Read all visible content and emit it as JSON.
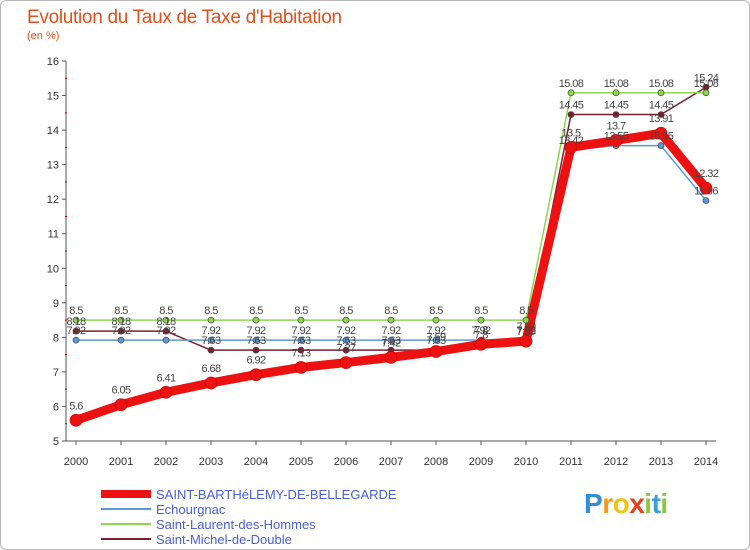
{
  "title": "Evolution du Taux de Taxe d'Habitation",
  "subtitle": "(en %)",
  "logo": {
    "letters": [
      "P",
      "r",
      "o",
      "x",
      "i",
      "t",
      "i"
    ],
    "colors": [
      "#2e8fd6",
      "#f39a1b",
      "#f1c40f",
      "#e8411f",
      "#8dc63f",
      "#3a9fd8",
      "#8dc63f"
    ]
  },
  "chart_data": {
    "type": "line",
    "title": "Evolution du Taux de Taxe d'Habitation",
    "ylabel": "(en %)",
    "xlabel": "",
    "ylim": [
      5,
      16
    ],
    "yticks": [
      5,
      6,
      7,
      8,
      9,
      10,
      11,
      12,
      13,
      14,
      15,
      16
    ],
    "x": [
      "2000",
      "2001",
      "2002",
      "2003",
      "2004",
      "2005",
      "2006",
      "2007",
      "2008",
      "2009",
      "2010",
      "2011",
      "2012",
      "2013",
      "2014"
    ],
    "grid": false,
    "legend_position": "bottom-left",
    "series": [
      {
        "name": "SAINT-BARTHéLEMY-DE-BELLEGARDE",
        "color": "#ee1111",
        "width": 9,
        "values": [
          5.6,
          6.05,
          6.41,
          6.68,
          6.92,
          7.13,
          7.27,
          7.42,
          7.59,
          7.8,
          7.89,
          13.5,
          13.7,
          13.91,
          12.32
        ],
        "labels": [
          "5.6",
          "6.05",
          "6.41",
          "6.68",
          "6.92",
          "7.13",
          "7.27",
          "7.42",
          "7.59",
          "7.8",
          "7.89",
          "13.5",
          "13.7",
          "13.91",
          "12.32"
        ]
      },
      {
        "name": "Echourgnac",
        "color": "#5b9bd5",
        "width": 1.5,
        "values": [
          7.92,
          7.92,
          7.92,
          7.92,
          7.92,
          7.92,
          7.92,
          7.92,
          7.92,
          7.92,
          7.92,
          13.42,
          13.55,
          13.55,
          11.96
        ],
        "labels": [
          "7.92",
          "7.92",
          "7.92",
          "7.92",
          "7.92",
          "7.92",
          "7.92",
          "7.92",
          "7.92",
          "7.92",
          "7.92",
          "13.42",
          "13.55",
          "13.55",
          "11.96"
        ]
      },
      {
        "name": "Saint-Laurent-des-Hommes",
        "color": "#8ed64e",
        "width": 1.5,
        "values": [
          8.5,
          8.5,
          8.5,
          8.5,
          8.5,
          8.5,
          8.5,
          8.5,
          8.5,
          8.5,
          8.5,
          15.08,
          15.08,
          15.08,
          15.08
        ],
        "labels": [
          "8.5",
          "8.5",
          "8.5",
          "8.5",
          "8.5",
          "8.5",
          "8.5",
          "8.5",
          "8.5",
          "8.5",
          "8.5",
          "15.08",
          "15.08",
          "15.08",
          "15.08"
        ]
      },
      {
        "name": "Saint-Michel-de-Double",
        "color": "#7b1f2e",
        "width": 1.5,
        "values": [
          8.18,
          8.18,
          8.18,
          7.63,
          7.63,
          7.63,
          7.63,
          7.63,
          7.63,
          7.8,
          7.89,
          14.45,
          14.45,
          14.45,
          15.24
        ],
        "labels": [
          "8.18",
          "8.18",
          "8.18",
          "7.63",
          "7.63",
          "7.63",
          "7.63",
          "7.63",
          "7.63",
          "7.8",
          "7.89",
          "14.45",
          "14.45",
          "14.45",
          "15.24"
        ]
      }
    ]
  }
}
